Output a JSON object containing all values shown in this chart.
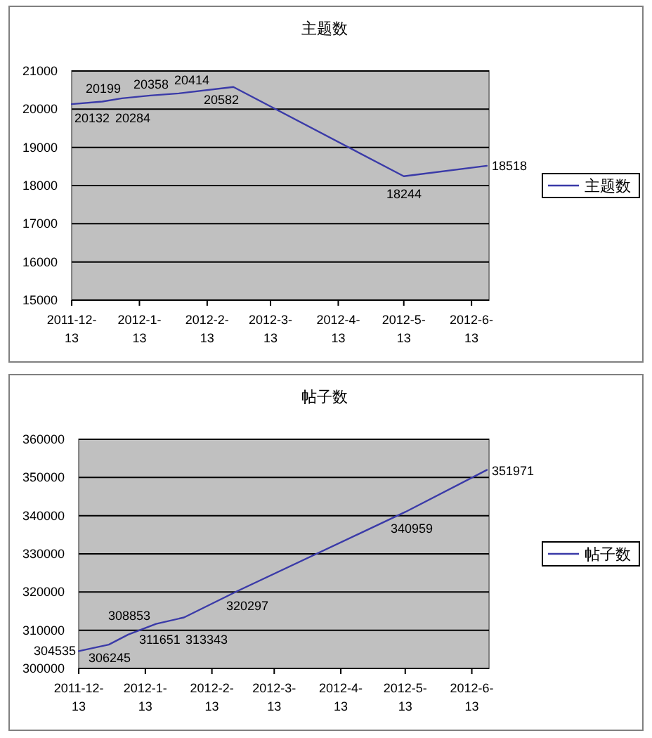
{
  "chart_data": [
    {
      "type": "line",
      "title": "主题数",
      "x": [
        "2011-12-13",
        "2011-12-27",
        "2012-01-05",
        "2012-01-18",
        "2012-01-31",
        "2012-02-25",
        "2012-05-13",
        "2012-06-20"
      ],
      "series": [
        {
          "name": "主题数",
          "color": "#3a3aa8",
          "values": [
            20132,
            20199,
            20284,
            20358,
            20414,
            20582,
            18244,
            18518
          ]
        }
      ],
      "xlim": [
        "2011-12-13",
        "2012-06-21"
      ],
      "xticks": [
        {
          "value": "2011-12-13",
          "label": "2011-12-13"
        },
        {
          "value": "2012-01-13",
          "label": "2012-1-13"
        },
        {
          "value": "2012-02-13",
          "label": "2012-2-13"
        },
        {
          "value": "2012-03-13",
          "label": "2012-3-13"
        },
        {
          "value": "2012-04-13",
          "label": "2012-4-13"
        },
        {
          "value": "2012-05-13",
          "label": "2012-5-13"
        },
        {
          "value": "2012-06-13",
          "label": "2012-6-13"
        }
      ],
      "ylim": [
        15000,
        21000
      ],
      "yticks": [
        15000,
        16000,
        17000,
        18000,
        19000,
        20000,
        21000
      ],
      "grid": "y",
      "legend": "right",
      "data_labels": true
    },
    {
      "type": "line",
      "title": "帖子数",
      "x": [
        "2011-12-13",
        "2011-12-27",
        "2012-01-05",
        "2012-01-18",
        "2012-01-31",
        "2012-02-25",
        "2012-05-13",
        "2012-06-20"
      ],
      "series": [
        {
          "name": "帖子数",
          "color": "#3a3aa8",
          "values": [
            304535,
            306245,
            308853,
            311651,
            313343,
            320297,
            340959,
            351971
          ]
        }
      ],
      "xlim": [
        "2011-12-13",
        "2012-06-21"
      ],
      "xticks": [
        {
          "value": "2011-12-13",
          "label": "2011-12-13"
        },
        {
          "value": "2012-01-13",
          "label": "2012-1-13"
        },
        {
          "value": "2012-02-13",
          "label": "2012-2-13"
        },
        {
          "value": "2012-03-13",
          "label": "2012-3-13"
        },
        {
          "value": "2012-04-13",
          "label": "2012-4-13"
        },
        {
          "value": "2012-05-13",
          "label": "2012-5-13"
        },
        {
          "value": "2012-06-13",
          "label": "2012-6-13"
        }
      ],
      "ylim": [
        300000,
        360000
      ],
      "yticks": [
        300000,
        310000,
        320000,
        330000,
        340000,
        350000,
        360000
      ],
      "grid": "y",
      "legend": "right",
      "data_labels": true
    }
  ]
}
